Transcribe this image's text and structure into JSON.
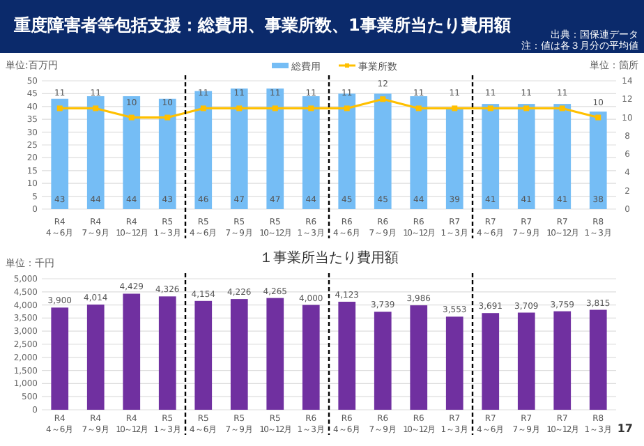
{
  "chart_data": [
    {
      "type": "bar",
      "title": "重度障害者等包括支援：総費用、事業所数、1事業所当たり費用額",
      "annotations": [
        "出典：国保連データ",
        "注：値は各３月分の平均値"
      ],
      "categories": [
        "R4\n4～6月",
        "R4\n7～9月",
        "R4\n10～12月",
        "R5\n1～3月",
        "R5\n4～6月",
        "R5\n7～9月",
        "R5\n10～12月",
        "R6\n1～3月",
        "R6\n4～6月",
        "R6\n7～9月",
        "R6\n10～12月",
        "R7\n1～3月",
        "R7\n4～6月",
        "R7\n7～9月",
        "R7\n10～12月",
        "R8\n1～3月"
      ],
      "series": [
        {
          "name": "総費用",
          "type": "bar",
          "color": "#75bdf5",
          "values": [
            43,
            44,
            44,
            43,
            46,
            47,
            47,
            44,
            45,
            45,
            44,
            39,
            41,
            41,
            41,
            38
          ]
        },
        {
          "name": "事業所数",
          "type": "line",
          "axis": "y2",
          "color": "#ffc000",
          "values": [
            11,
            11,
            10,
            10,
            11,
            11,
            11,
            11,
            11,
            12,
            11,
            11,
            11,
            11,
            11,
            10
          ]
        }
      ],
      "ylabel": "単位:百万円",
      "y2label": "単位：箇所",
      "ylim": [
        0,
        50
      ],
      "yticks": [
        0,
        5,
        10,
        15,
        20,
        25,
        30,
        35,
        40,
        45,
        50
      ],
      "y2lim": [
        0,
        14
      ],
      "y2ticks": [
        0,
        2,
        4,
        6,
        8,
        10,
        12,
        14
      ],
      "data_labels": true,
      "marker": "square",
      "grid": "y",
      "legend": "top"
    },
    {
      "type": "bar",
      "title": "１事業所当たり費用額",
      "ylabel": "単位：千円",
      "annotations": [
        "17"
      ],
      "categories": [
        "R4\n4～6月",
        "R4\n7～9月",
        "R4\n10～12月",
        "R5\n1～3月",
        "R5\n4～6月",
        "R5\n7～9月",
        "R5\n10～12月",
        "R6\n1～3月",
        "R6\n4～6月",
        "R6\n7～9月",
        "R6\n10～12月",
        "R7\n1～3月",
        "R7\n4～6月",
        "R7\n7～9月",
        "R7\n10～12月",
        "R8\n1～3月"
      ],
      "values": [
        3900,
        4014,
        4429,
        4326,
        4154,
        4226,
        4265,
        4000,
        4123,
        3739,
        3986,
        3553,
        3691,
        3709,
        3759,
        3815
      ],
      "value_labels": [
        "3,900",
        "4,014",
        "4,429",
        "4,326",
        "4,154",
        "4,226",
        "4,265",
        "4,000",
        "4,123",
        "3,739",
        "3,986",
        "3,553",
        "3,691",
        "3,709",
        "3,759",
        "3,815"
      ],
      "color": "#7030a0",
      "ylim": [
        0,
        5000
      ],
      "yticks": [
        {
          "value": 0,
          "label": "0"
        },
        {
          "value": 500,
          "label": "500"
        },
        {
          "value": 1000,
          "label": "1,000"
        },
        {
          "value": 1500,
          "label": "1,500"
        },
        {
          "value": 2000,
          "label": "2,000"
        },
        {
          "value": 2500,
          "label": "2,500"
        },
        {
          "value": 3000,
          "label": "3,000"
        },
        {
          "value": 3500,
          "label": "3,500"
        },
        {
          "value": 4000,
          "label": "4,000"
        },
        {
          "value": 4500,
          "label": "4,500"
        },
        {
          "value": 5000,
          "label": "5,000"
        }
      ],
      "grid": "y"
    }
  ]
}
